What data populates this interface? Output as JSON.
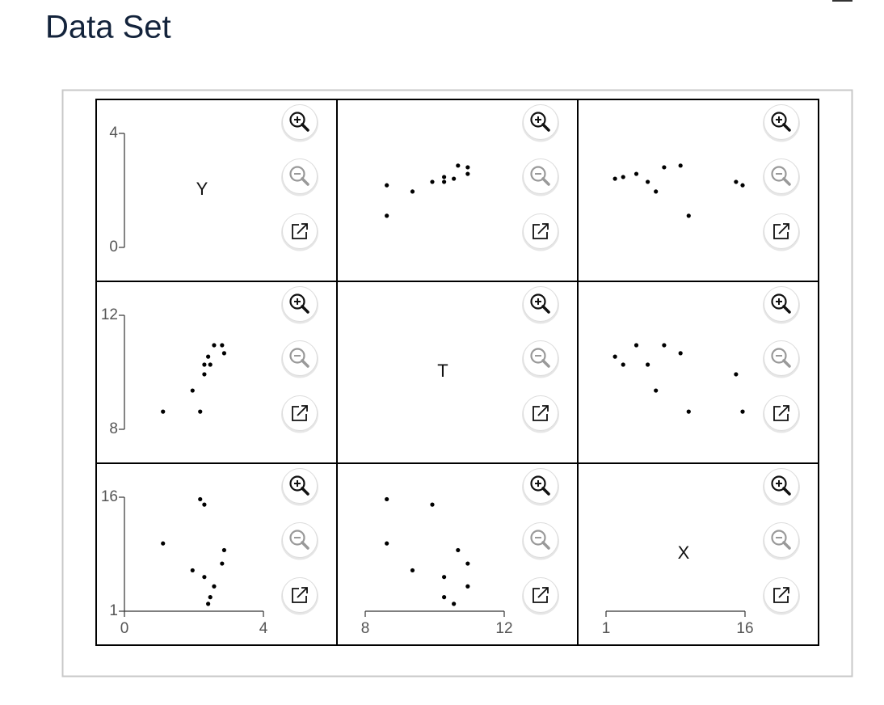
{
  "header": {
    "title": "Data Set"
  },
  "chart_data": {
    "type": "scatter_matrix",
    "variables": [
      {
        "name": "Y",
        "values": [
          2.41,
          2.47,
          2.58,
          2.3,
          1.96,
          2.81,
          2.87,
          1.11,
          2.3,
          2.18
        ],
        "lim": [
          0,
          4
        ],
        "ticks": [
          0,
          4
        ]
      },
      {
        "name": "T",
        "values": [
          10.55,
          10.27,
          10.95,
          10.27,
          9.36,
          10.95,
          10.67,
          8.62,
          9.93,
          8.62
        ],
        "lim": [
          8,
          12
        ],
        "ticks": [
          8,
          12
        ]
      },
      {
        "name": "X",
        "values": [
          1.97,
          2.85,
          4.27,
          5.5,
          6.38,
          7.27,
          9.04,
          9.92,
          15.03,
          15.74
        ],
        "lim": [
          1,
          16
        ],
        "ticks": [
          1,
          16
        ]
      }
    ],
    "color": "#000000"
  }
}
